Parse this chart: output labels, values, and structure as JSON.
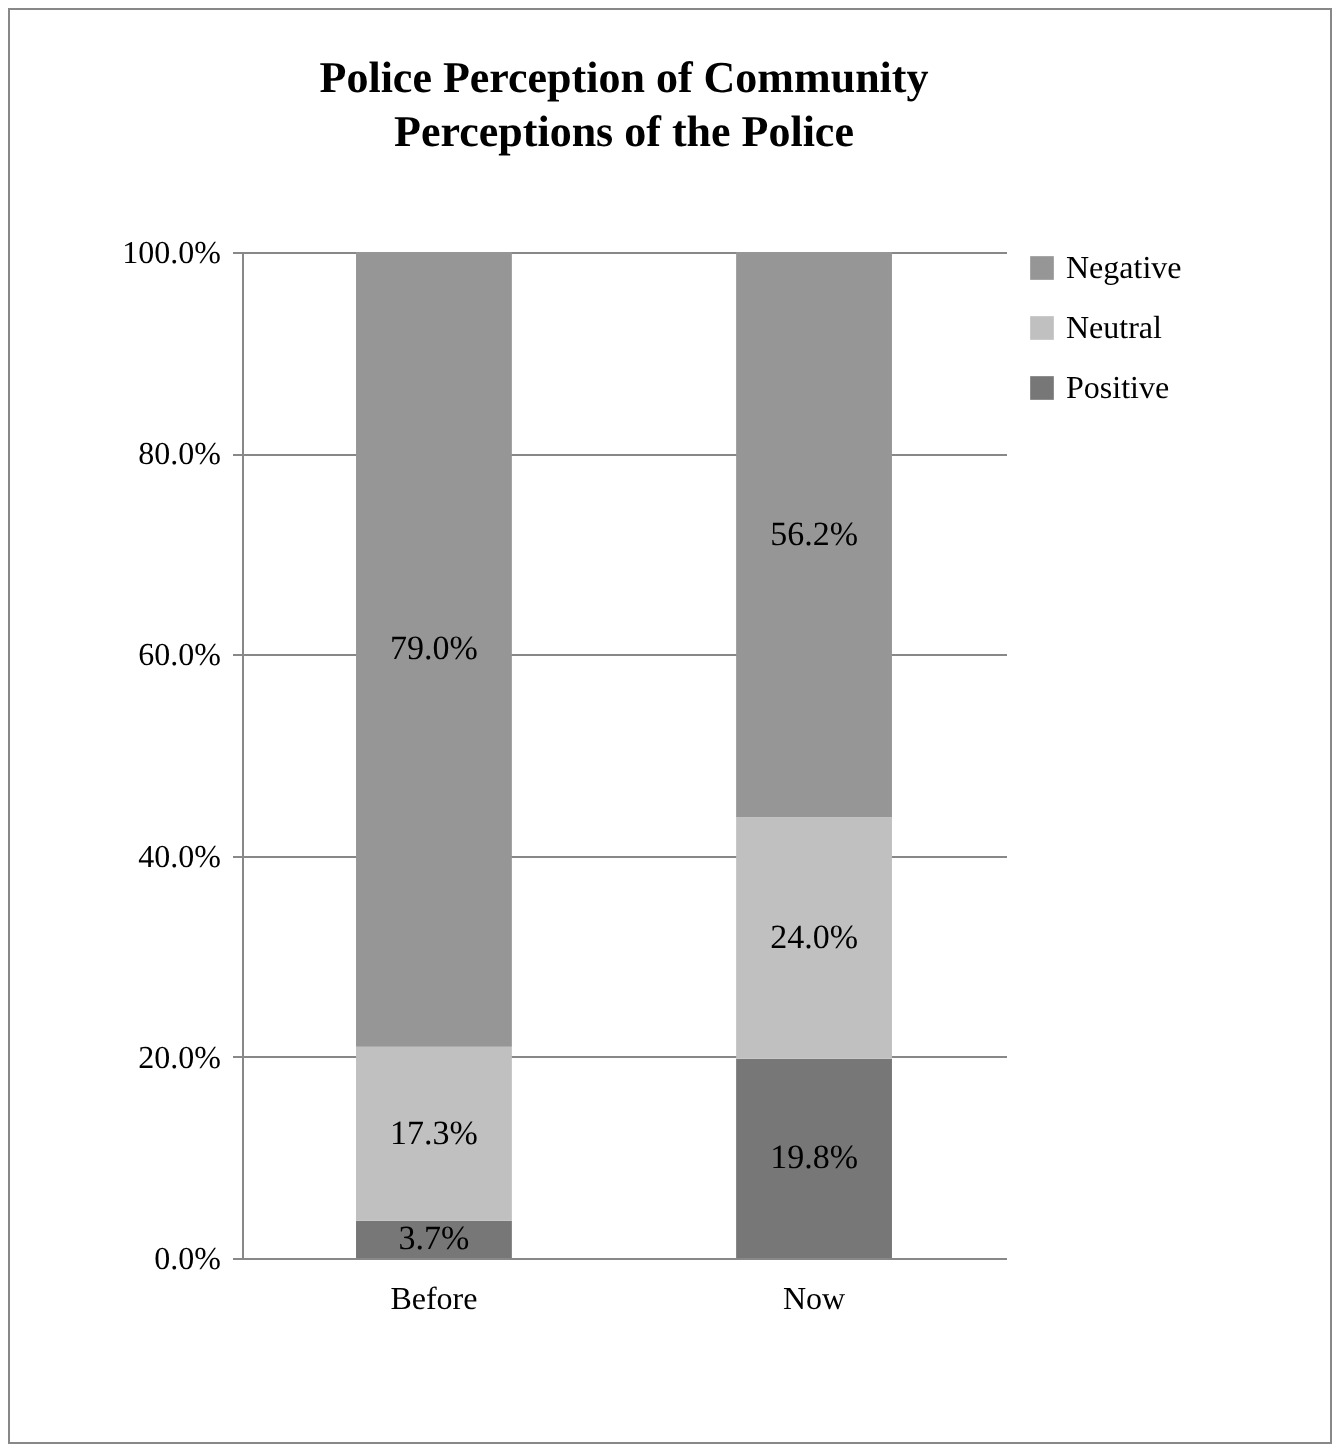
{
  "chart_data": {
    "type": "bar",
    "title": "Police Perception of Community Perceptions of the Police",
    "categories": [
      "Before",
      "Now"
    ],
    "stacked": true,
    "series": [
      {
        "name": "Positive",
        "color": "#777777",
        "values": [
          3.7,
          19.8
        ],
        "value_labels": [
          "3.7%",
          "19.8%"
        ]
      },
      {
        "name": "Neutral",
        "color": "#c0c0c0",
        "values": [
          17.3,
          24.0
        ],
        "value_labels": [
          "17.3%",
          "24.0%"
        ]
      },
      {
        "name": "Negative",
        "color": "#969696",
        "values": [
          79.0,
          56.2
        ],
        "value_labels": [
          "79.0%",
          "56.2%"
        ]
      }
    ],
    "ylim": [
      0,
      100
    ],
    "yticks": [
      {
        "value": 0,
        "label": "0.0%"
      },
      {
        "value": 20,
        "label": "20.0%"
      },
      {
        "value": 40,
        "label": "40.0%"
      },
      {
        "value": 60,
        "label": "60.0%"
      },
      {
        "value": 80,
        "label": "80.0%"
      },
      {
        "value": 100,
        "label": "100.0%"
      }
    ],
    "grid": "y",
    "legend": "right"
  }
}
